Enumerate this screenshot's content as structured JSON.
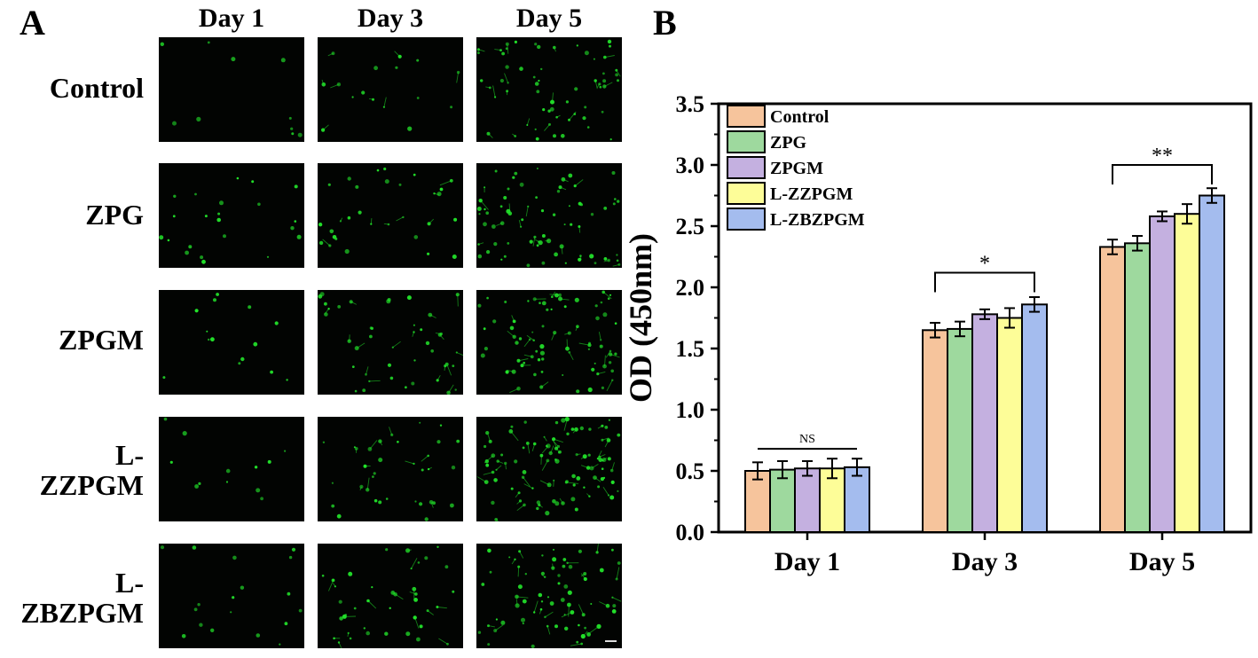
{
  "panel_a": {
    "label": "A",
    "columns": [
      "Day 1",
      "Day 3",
      "Day 5"
    ],
    "rows": [
      "Control",
      "ZPG",
      "ZPGM",
      "L-\nZZPGM",
      "L-\nZBZPGM"
    ]
  },
  "panel_b": {
    "label": "B"
  },
  "colors": {
    "series": [
      "#f6c49c",
      "#9ed99e",
      "#c4b0e0",
      "#fdfd98",
      "#a4bcee"
    ],
    "cells": "#22e22a"
  },
  "chart_data": {
    "type": "bar",
    "categories": [
      "Day 1",
      "Day 3",
      "Day 5"
    ],
    "series": [
      {
        "name": "Control",
        "values": [
          0.5,
          1.65,
          2.33
        ],
        "errors": [
          0.07,
          0.06,
          0.06
        ]
      },
      {
        "name": "ZPG",
        "values": [
          0.51,
          1.66,
          2.36
        ],
        "errors": [
          0.07,
          0.06,
          0.06
        ]
      },
      {
        "name": "ZPGM",
        "values": [
          0.52,
          1.78,
          2.58
        ],
        "errors": [
          0.06,
          0.04,
          0.04
        ]
      },
      {
        "name": "L-ZZPGM",
        "values": [
          0.52,
          1.75,
          2.6
        ],
        "errors": [
          0.08,
          0.08,
          0.08
        ]
      },
      {
        "name": "L-ZBZPGM",
        "values": [
          0.53,
          1.86,
          2.75
        ],
        "errors": [
          0.07,
          0.06,
          0.06
        ]
      }
    ],
    "ylabel": "OD (450nm)",
    "xlabel": "",
    "ylim": [
      0,
      3.5
    ],
    "yticks": [
      "0.0",
      "0.5",
      "1.0",
      "1.5",
      "2.0",
      "2.5",
      "3.0",
      "3.5"
    ],
    "legend_position": "top-left",
    "grid": false,
    "significance": [
      {
        "category": "Day 1",
        "label": "NS",
        "from_series": "Control",
        "to_series": "L-ZBZPGM",
        "y": 0.68
      },
      {
        "category": "Day 3",
        "label": "*",
        "from_series": "Control",
        "to_series": "L-ZBZPGM",
        "y": 2.12
      },
      {
        "category": "Day 5",
        "label": "**",
        "from_series": "Control",
        "to_series": "L-ZBZPGM",
        "y": 3.0
      }
    ]
  }
}
